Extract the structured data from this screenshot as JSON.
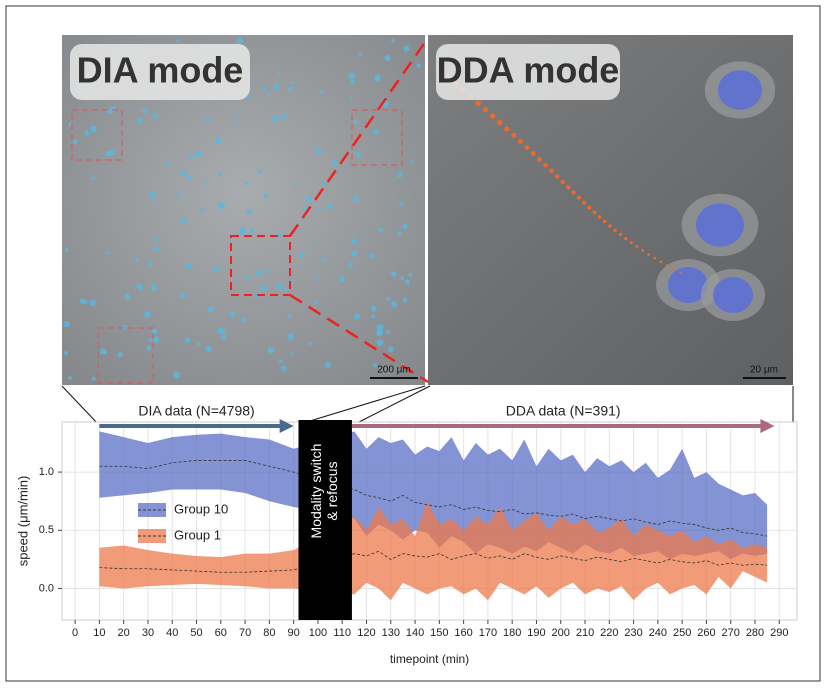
{
  "panels": {
    "left_label": "DIA mode",
    "right_label": "DDA mode",
    "left_scale": "200 μm",
    "right_scale": "20 μm"
  },
  "chart_data": {
    "type": "band",
    "x_label": "timepoint (min)",
    "y_label": "speed (μm/min)",
    "x": [
      10,
      20,
      30,
      40,
      50,
      60,
      70,
      80,
      90,
      115,
      120,
      125,
      130,
      135,
      140,
      145,
      150,
      155,
      160,
      165,
      170,
      175,
      180,
      185,
      190,
      195,
      200,
      205,
      210,
      215,
      220,
      225,
      230,
      235,
      240,
      245,
      250,
      255,
      260,
      265,
      270,
      275,
      280,
      285
    ],
    "series": [
      {
        "name": "Group 10",
        "color": "#5b6fc4",
        "values": [
          1.05,
          1.05,
          1.03,
          1.08,
          1.1,
          1.1,
          1.1,
          1.05,
          1.0,
          0.85,
          0.8,
          0.78,
          0.75,
          0.8,
          0.74,
          0.72,
          0.7,
          0.72,
          0.68,
          0.7,
          0.67,
          0.66,
          0.68,
          0.64,
          0.65,
          0.63,
          0.62,
          0.64,
          0.6,
          0.62,
          0.6,
          0.58,
          0.6,
          0.57,
          0.55,
          0.58,
          0.56,
          0.55,
          0.52,
          0.5,
          0.52,
          0.48,
          0.47,
          0.45
        ],
        "upper": [
          1.35,
          1.3,
          1.25,
          1.3,
          1.32,
          1.33,
          1.3,
          1.28,
          1.2,
          1.35,
          1.2,
          1.3,
          1.25,
          1.28,
          1.15,
          1.22,
          1.18,
          1.3,
          1.1,
          1.25,
          1.15,
          1.2,
          1.1,
          1.28,
          1.05,
          1.2,
          1.1,
          1.15,
          1.0,
          1.12,
          1.05,
          1.1,
          1.0,
          1.08,
          0.95,
          1.02,
          1.2,
          0.95,
          1.0,
          0.9,
          0.85,
          0.8,
          0.82,
          0.72
        ],
        "lower": [
          0.78,
          0.8,
          0.82,
          0.85,
          0.85,
          0.85,
          0.82,
          0.75,
          0.7,
          0.6,
          0.45,
          0.55,
          0.5,
          0.42,
          0.5,
          0.48,
          0.35,
          0.45,
          0.4,
          0.3,
          0.38,
          0.35,
          0.3,
          0.36,
          0.32,
          0.4,
          0.35,
          0.3,
          0.38,
          0.32,
          0.3,
          0.35,
          0.28,
          0.3,
          0.32,
          0.25,
          0.3,
          0.28,
          0.3,
          0.32,
          0.25,
          0.3,
          0.28,
          0.3
        ]
      },
      {
        "name": "Group 1",
        "color": "#ec7a4b",
        "values": [
          0.18,
          0.17,
          0.17,
          0.16,
          0.15,
          0.14,
          0.14,
          0.15,
          0.16,
          0.3,
          0.28,
          0.32,
          0.25,
          0.3,
          0.28,
          0.27,
          0.3,
          0.25,
          0.28,
          0.3,
          0.26,
          0.28,
          0.25,
          0.3,
          0.27,
          0.25,
          0.28,
          0.26,
          0.24,
          0.27,
          0.25,
          0.23,
          0.26,
          0.24,
          0.22,
          0.25,
          0.23,
          0.22,
          0.24,
          0.2,
          0.22,
          0.2,
          0.21,
          0.2
        ],
        "upper": [
          0.35,
          0.37,
          0.33,
          0.3,
          0.28,
          0.27,
          0.3,
          0.3,
          0.33,
          0.62,
          0.5,
          0.7,
          0.55,
          0.6,
          0.45,
          0.75,
          0.55,
          0.6,
          0.5,
          0.62,
          0.55,
          0.7,
          0.5,
          0.58,
          0.65,
          0.5,
          0.62,
          0.55,
          0.6,
          0.48,
          0.52,
          0.6,
          0.45,
          0.55,
          0.5,
          0.45,
          0.5,
          0.4,
          0.45,
          0.38,
          0.42,
          0.35,
          0.38,
          0.35
        ],
        "lower": [
          0.02,
          0.0,
          0.02,
          0.03,
          0.04,
          0.03,
          0.02,
          0.0,
          0.0,
          -0.05,
          0.05,
          0.0,
          -0.1,
          0.05,
          0.0,
          -0.05,
          0.0,
          0.02,
          -0.05,
          0.0,
          -0.1,
          0.05,
          0.0,
          -0.05,
          0.02,
          -0.08,
          0.0,
          0.05,
          -0.05,
          0.0,
          -0.03,
          0.02,
          -0.1,
          0.0,
          0.05,
          -0.05,
          0.0,
          0.03,
          -0.05,
          0.1,
          0.0,
          0.15,
          0.1,
          0.05
        ]
      }
    ],
    "xlim": [
      -5.4,
      297.3
    ],
    "ylim": [
      -0.27,
      1.43
    ],
    "xticks": [
      0,
      10,
      20,
      30,
      40,
      50,
      60,
      70,
      80,
      90,
      100,
      110,
      120,
      130,
      140,
      150,
      160,
      170,
      180,
      190,
      200,
      210,
      220,
      230,
      240,
      250,
      260,
      270,
      280,
      290
    ],
    "yticks": [
      {
        "value": 0,
        "label": "0.0"
      },
      {
        "value": 0.5,
        "label": "0.5"
      },
      {
        "value": 1,
        "label": "1.0"
      }
    ],
    "grid": true,
    "legend": "center left",
    "annotations": [
      {
        "text": "DIA data (N=4798)",
        "from": 10,
        "to": 90,
        "color": "#4a6a8c"
      },
      {
        "text": "DDA data (N=391)",
        "from": 114,
        "to": 288,
        "color": "#a86a7c"
      }
    ],
    "span": {
      "from": 92,
      "to": 114,
      "lines": [
        "Modality switch",
        "& refocus"
      ]
    }
  }
}
